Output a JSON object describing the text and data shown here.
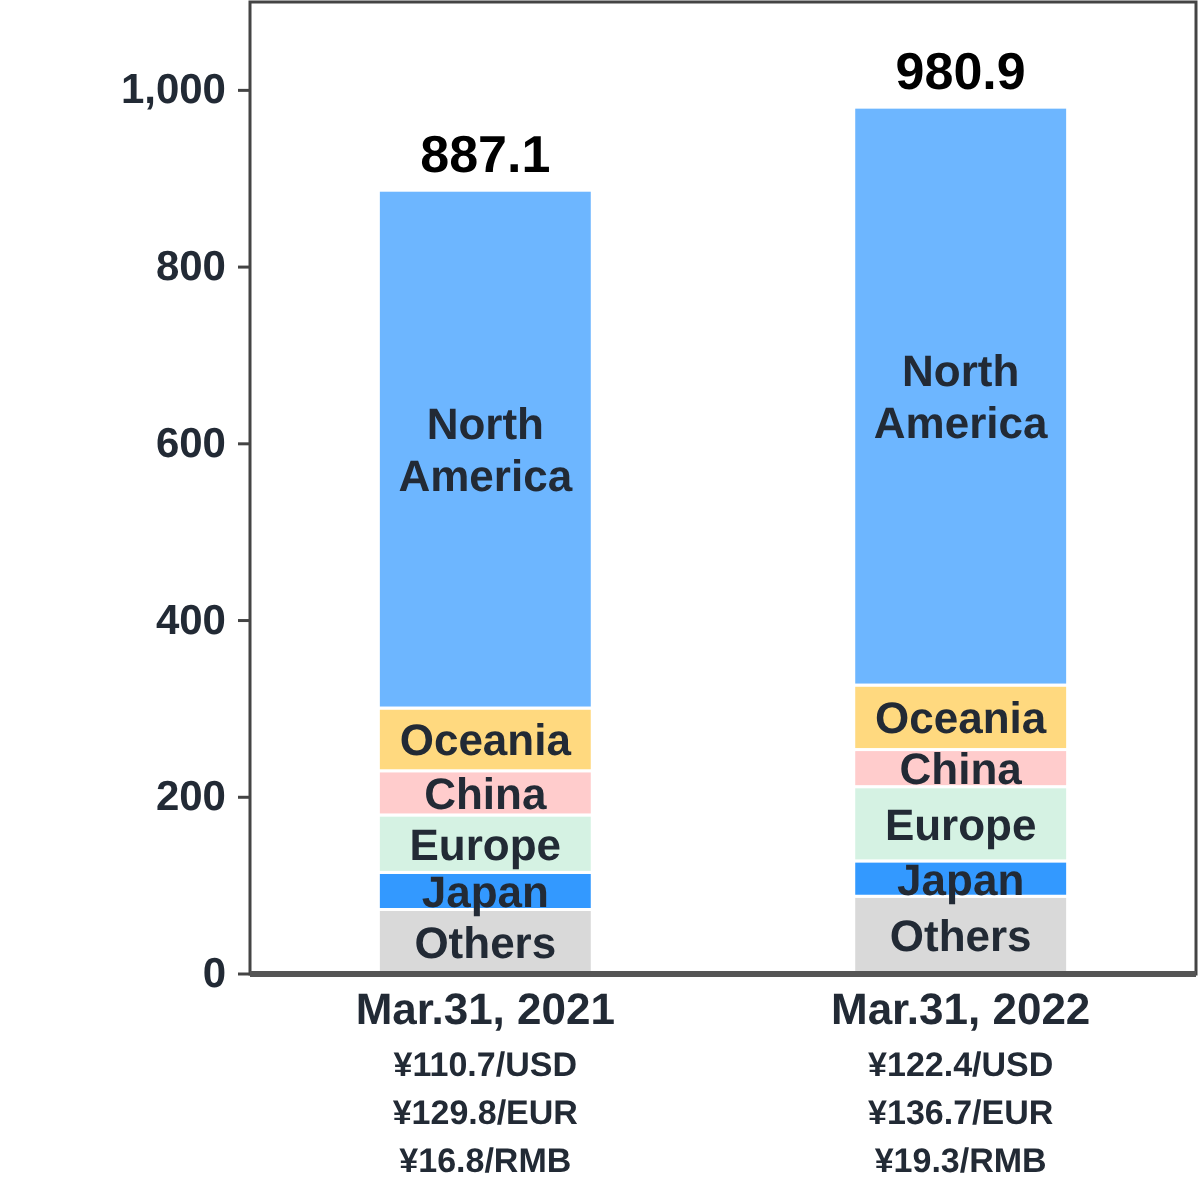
{
  "chart_data": {
    "type": "bar",
    "stacked": true,
    "categories": [
      "Mar.31, 2021\n¥110.7/USD\n¥129.8/EUR\n¥16.8/RMB",
      "Mar.31, 2022\n¥122.4/USD\n¥136.7/EUR\n¥19.3/RMB"
    ],
    "series": [
      {
        "name": "Others",
        "color": "#d9d9d9",
        "values": [
          73,
          88
        ]
      },
      {
        "name": "Japan",
        "color": "#3399ff",
        "values": [
          42,
          40
        ]
      },
      {
        "name": "Europe",
        "color": "#d5f2e3",
        "values": [
          65,
          84
        ]
      },
      {
        "name": "China",
        "color": "#ffcccc",
        "values": [
          50,
          42
        ]
      },
      {
        "name": "Oceania",
        "color": "#ffd97f",
        "values": [
          71,
          73
        ]
      },
      {
        "name": "North\nAmerica",
        "color": "#6db6ff",
        "values": [
          586,
          654
        ]
      }
    ],
    "totals": [
      "887.1",
      "980.9"
    ],
    "ylim": [
      0,
      1100
    ],
    "yticks": [
      0,
      200,
      400,
      600,
      800,
      {
        "value": 1000,
        "label": "1,000"
      }
    ],
    "grid": false
  }
}
